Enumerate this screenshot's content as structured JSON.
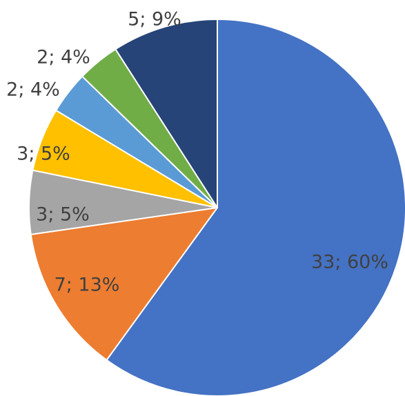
{
  "chart_data": {
    "type": "pie",
    "slices": [
      {
        "value": 33,
        "label": "33; 60%",
        "color": "#4472C4"
      },
      {
        "value": 7,
        "label": "7; 13%",
        "color": "#ED7D31"
      },
      {
        "value": 3,
        "label": "3; 5%",
        "color": "#A5A5A5"
      },
      {
        "value": 3,
        "label": "3; 5%",
        "color": "#FFC000"
      },
      {
        "value": 2,
        "label": "2; 4%",
        "color": "#5B9BD5"
      },
      {
        "value": 2,
        "label": "2; 4%",
        "color": "#70AD47"
      },
      {
        "value": 5,
        "label": "5; 9%",
        "color": "#264478"
      }
    ],
    "start_angle": "12 o'clock",
    "direction": "clockwise",
    "legend": "none",
    "text_color": "#404040"
  }
}
